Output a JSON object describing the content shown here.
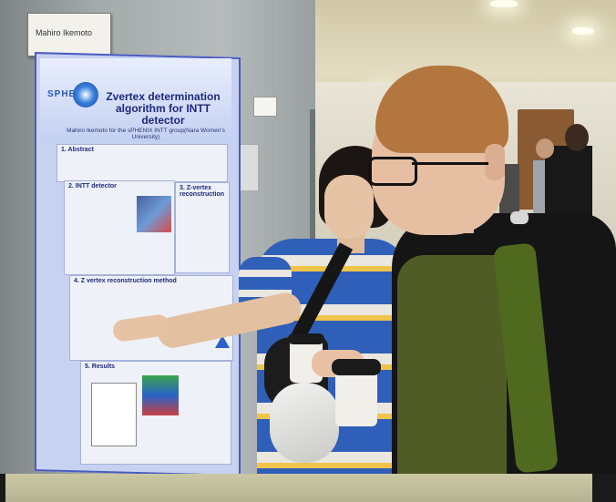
{
  "scene": {
    "name_card_text": "Mahiro Ikemoto",
    "poster": {
      "logo_text": "SPHENIX",
      "title": "Zvertex determination algorithm for INTT detector",
      "author_line": "Mahiro Ikemoto for the sPHENIX INTT group(Nara Women's University)",
      "sections": [
        {
          "label": "1. Abstract"
        },
        {
          "label": "2. INTT detector"
        },
        {
          "label": "3. Z-vertex reconstruction"
        },
        {
          "label": "4. Z vertex reconstruction method"
        },
        {
          "label": "5. Results"
        }
      ]
    },
    "colors": {
      "poster_border": "#4b5cc0",
      "poster_bg": "#c7d2f0",
      "shirt_blue": "#2f5fb8",
      "hair_ginger": "#b3763e",
      "vest_olive": "#505c25"
    }
  }
}
